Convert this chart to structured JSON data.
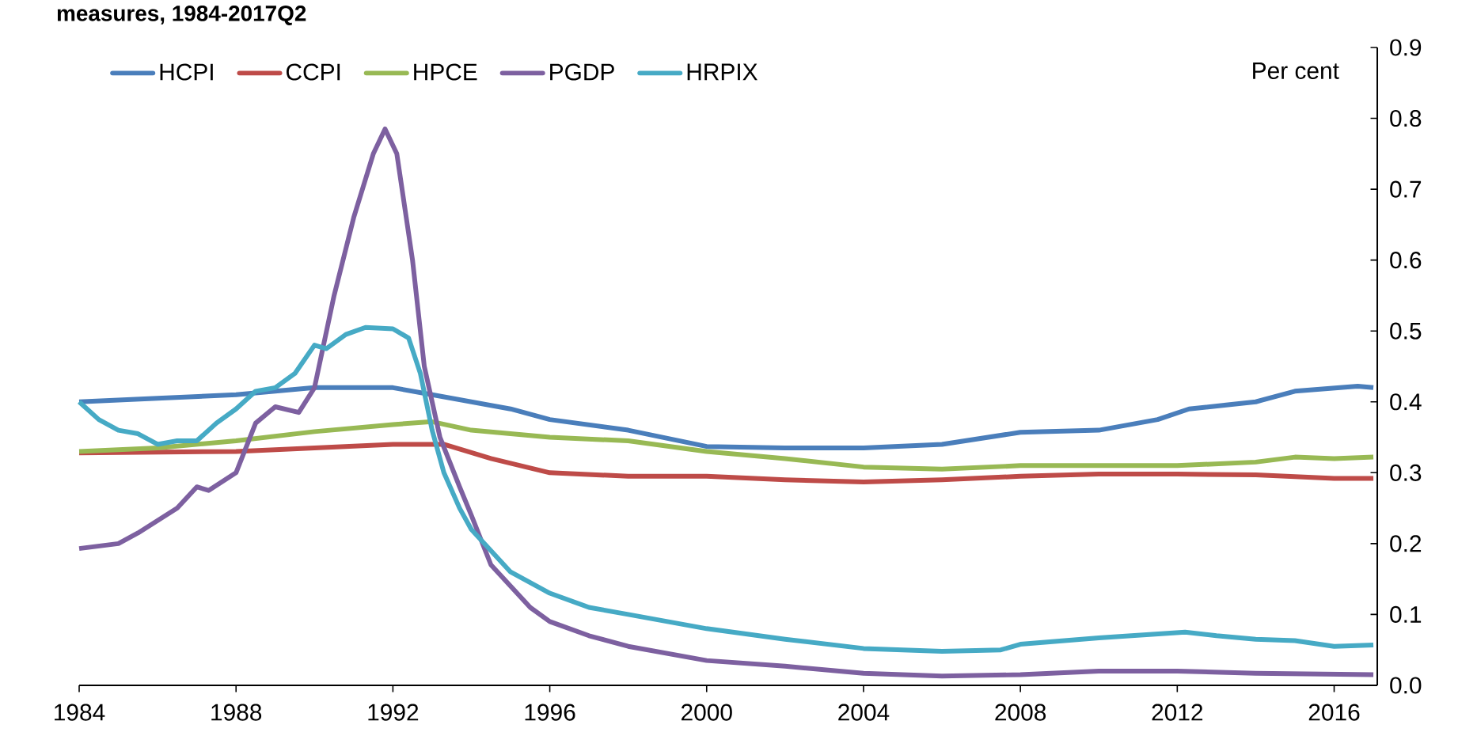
{
  "chart_data": {
    "type": "line",
    "title": "measures, 1984-2017Q2",
    "ylabel": "Per cent",
    "xlim": [
      1984,
      2017.1
    ],
    "xticks": [
      1984,
      1988,
      1992,
      1996,
      2000,
      2004,
      2008,
      2012,
      2016
    ],
    "ylim": [
      0,
      0.9
    ],
    "yticks": [
      {
        "value": 0,
        "label": "0.0"
      },
      0.1,
      0.2,
      0.3,
      0.4,
      0.5,
      0.6,
      0.7,
      0.8,
      0.9
    ],
    "legend": "top",
    "grid": false,
    "marker": "none",
    "line_style": "solid",
    "series": [
      {
        "name": "HCPI",
        "color": "#4a7ebb",
        "x": [
          1984,
          1986,
          1988,
          1990,
          1992,
          1993,
          1995,
          1996,
          1998,
          2000,
          2002,
          2004,
          2006,
          2008,
          2010,
          2011.5,
          2012.3,
          2014,
          2015,
          2016.6,
          2017
        ],
        "values": [
          0.4,
          0.405,
          0.41,
          0.42,
          0.42,
          0.41,
          0.39,
          0.375,
          0.36,
          0.337,
          0.335,
          0.335,
          0.34,
          0.357,
          0.36,
          0.375,
          0.39,
          0.4,
          0.415,
          0.422,
          0.42
        ]
      },
      {
        "name": "CCPI",
        "color": "#be4b48",
        "x": [
          1984,
          1988,
          1990,
          1992,
          1993.3,
          1994.5,
          1996,
          1998,
          2000,
          2002,
          2004,
          2006,
          2008,
          2010,
          2012,
          2014,
          2016,
          2017
        ],
        "values": [
          0.328,
          0.33,
          0.335,
          0.34,
          0.34,
          0.32,
          0.3,
          0.295,
          0.295,
          0.29,
          0.287,
          0.29,
          0.295,
          0.298,
          0.298,
          0.297,
          0.292,
          0.292
        ]
      },
      {
        "name": "HPCE",
        "color": "#98b954",
        "x": [
          1984,
          1986,
          1988,
          1990,
          1992,
          1993,
          1994,
          1996,
          1998,
          2000,
          2002,
          2004,
          2006,
          2008,
          2010,
          2012,
          2014,
          2015,
          2016,
          2017
        ],
        "values": [
          0.33,
          0.335,
          0.345,
          0.358,
          0.368,
          0.372,
          0.36,
          0.35,
          0.345,
          0.33,
          0.32,
          0.308,
          0.305,
          0.31,
          0.31,
          0.31,
          0.315,
          0.322,
          0.32,
          0.322
        ]
      },
      {
        "name": "PGDP",
        "color": "#7d60a0",
        "x": [
          1984,
          1985,
          1985.5,
          1986.5,
          1987,
          1987.3,
          1988,
          1988.5,
          1989,
          1989.6,
          1990,
          1990.5,
          1991,
          1991.5,
          1991.8,
          1992.1,
          1992.5,
          1992.8,
          1993.2,
          1993.7,
          1994,
          1994.5,
          1995,
          1995.5,
          1996,
          1997,
          1998,
          1999,
          2000,
          2002,
          2004,
          2006,
          2008,
          2010,
          2012,
          2014,
          2017
        ],
        "values": [
          0.193,
          0.2,
          0.215,
          0.25,
          0.28,
          0.275,
          0.3,
          0.37,
          0.393,
          0.385,
          0.42,
          0.55,
          0.66,
          0.75,
          0.785,
          0.75,
          0.6,
          0.45,
          0.35,
          0.28,
          0.24,
          0.17,
          0.14,
          0.11,
          0.09,
          0.07,
          0.055,
          0.045,
          0.035,
          0.027,
          0.017,
          0.013,
          0.015,
          0.02,
          0.02,
          0.017,
          0.015
        ]
      },
      {
        "name": "HRPIX",
        "color": "#46aac5",
        "x": [
          1984,
          1984.5,
          1985,
          1985.5,
          1986,
          1986.5,
          1987,
          1987.5,
          1988,
          1988.5,
          1989,
          1989.5,
          1990,
          1990.3,
          1990.8,
          1991.3,
          1992,
          1992.4,
          1992.7,
          1993,
          1993.3,
          1993.7,
          1994,
          1994.5,
          1995,
          1996,
          1997,
          1998,
          1999,
          2000,
          2002,
          2004,
          2006,
          2007.5,
          2008,
          2010,
          2012.2,
          2013,
          2014,
          2015,
          2016,
          2017
        ],
        "values": [
          0.4,
          0.375,
          0.36,
          0.355,
          0.34,
          0.345,
          0.345,
          0.37,
          0.39,
          0.415,
          0.42,
          0.44,
          0.48,
          0.475,
          0.495,
          0.505,
          0.503,
          0.49,
          0.44,
          0.36,
          0.3,
          0.25,
          0.22,
          0.19,
          0.16,
          0.13,
          0.11,
          0.1,
          0.09,
          0.08,
          0.065,
          0.052,
          0.048,
          0.05,
          0.058,
          0.067,
          0.075,
          0.07,
          0.065,
          0.063,
          0.055,
          0.057
        ]
      }
    ]
  }
}
